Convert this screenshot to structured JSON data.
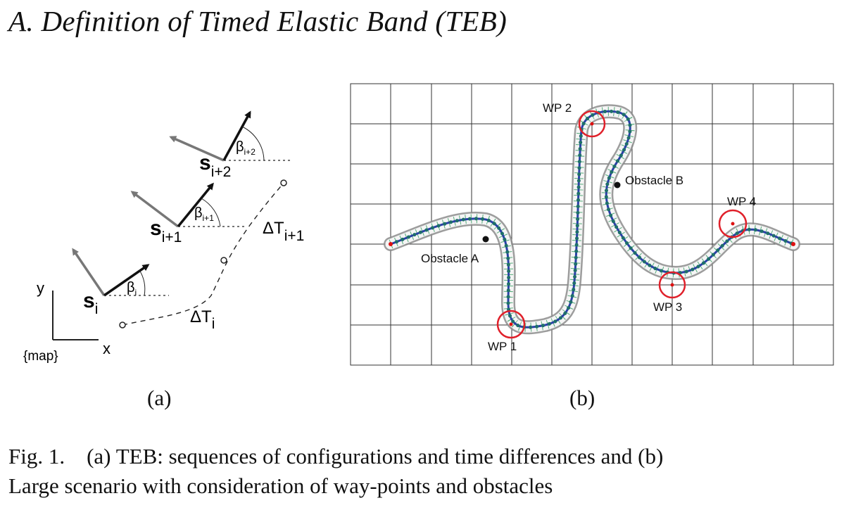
{
  "section_heading": "A. Definition of Timed Elastic Band (TEB)",
  "panel_a": {
    "label": "(a)",
    "states": [
      {
        "symbol": "s",
        "sub": "i",
        "angle_symbol": "β",
        "angle_sub": "i"
      },
      {
        "symbol": "s",
        "sub": "i+1",
        "angle_symbol": "β",
        "angle_sub": "i+1"
      },
      {
        "symbol": "s",
        "sub": "i+2",
        "angle_symbol": "β",
        "angle_sub": "i+2"
      }
    ],
    "time_diffs": [
      {
        "symbol": "ΔT",
        "sub": "i"
      },
      {
        "symbol": "ΔT",
        "sub": "i+1"
      }
    ],
    "axes": {
      "y": "y",
      "x": "x",
      "frame": "{map}"
    }
  },
  "panel_b": {
    "label": "(b)",
    "waypoints": [
      "WP 1",
      "WP 2",
      "WP 3",
      "WP 4"
    ],
    "obstacles": [
      "Obstacle A",
      "Obstacle B"
    ]
  },
  "caption": {
    "line1": "Fig. 1.    (a) TEB: sequences of configurations and time differences and (b)",
    "line2": "Large scenario with consideration of way-points and obstacles"
  }
}
